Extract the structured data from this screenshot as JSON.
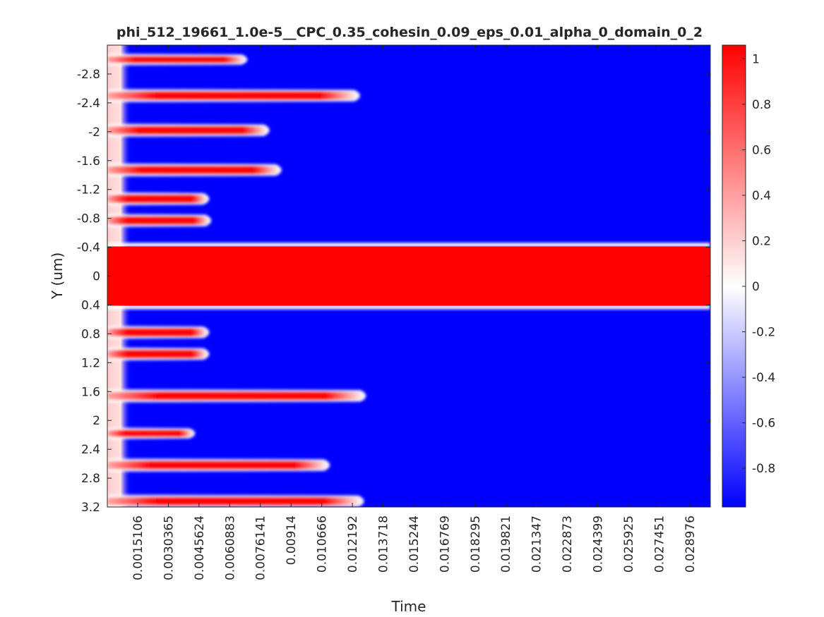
{
  "chart_data": {
    "type": "heatmap",
    "title": "phi_512_19661_1.0e-5__CPC_0.35_cohesin_0.09_eps_0.01_alpha_0_domain_0_2",
    "xlabel": "Time",
    "ylabel": "Y (um)",
    "x_range": [
      0,
      0.03
    ],
    "y_range": [
      -3.2,
      3.2
    ],
    "y_reversed": true,
    "x_ticks": [
      {
        "value": 0.0015106,
        "label": "0.0015106"
      },
      {
        "value": 0.0030365,
        "label": "0.0030365"
      },
      {
        "value": 0.0045624,
        "label": "0.0045624"
      },
      {
        "value": 0.0060883,
        "label": "0.0060883"
      },
      {
        "value": 0.0076141,
        "label": "0.0076141"
      },
      {
        "value": 0.00914,
        "label": "0.00914"
      },
      {
        "value": 0.010666,
        "label": "0.010666"
      },
      {
        "value": 0.012192,
        "label": "0.012192"
      },
      {
        "value": 0.013718,
        "label": "0.013718"
      },
      {
        "value": 0.015244,
        "label": "0.015244"
      },
      {
        "value": 0.016769,
        "label": "0.016769"
      },
      {
        "value": 0.018295,
        "label": "0.018295"
      },
      {
        "value": 0.019821,
        "label": "0.019821"
      },
      {
        "value": 0.021347,
        "label": "0.021347"
      },
      {
        "value": 0.022873,
        "label": "0.022873"
      },
      {
        "value": 0.024399,
        "label": "0.024399"
      },
      {
        "value": 0.025925,
        "label": "0.025925"
      },
      {
        "value": 0.027451,
        "label": "0.027451"
      },
      {
        "value": 0.028976,
        "label": "0.028976"
      }
    ],
    "y_ticks": [
      {
        "value": -2.8,
        "label": "-2.8"
      },
      {
        "value": -2.4,
        "label": "-2.4"
      },
      {
        "value": -2.0,
        "label": "-2"
      },
      {
        "value": -1.6,
        "label": "-1.6"
      },
      {
        "value": -1.2,
        "label": "-1.2"
      },
      {
        "value": -0.8,
        "label": "-0.8"
      },
      {
        "value": -0.4,
        "label": "-0.4"
      },
      {
        "value": 0.0,
        "label": "0"
      },
      {
        "value": 0.4,
        "label": "0.4"
      },
      {
        "value": 0.8,
        "label": "0.8"
      },
      {
        "value": 1.2,
        "label": "1.2"
      },
      {
        "value": 1.6,
        "label": "1.6"
      },
      {
        "value": 2.0,
        "label": "2"
      },
      {
        "value": 2.4,
        "label": "2.4"
      },
      {
        "value": 2.8,
        "label": "2.8"
      },
      {
        "value": 3.2,
        "label": "3.2"
      }
    ],
    "colorbar": {
      "range": [
        -0.97,
        1.06
      ],
      "ticks": [
        {
          "value": 1,
          "label": "1"
        },
        {
          "value": 0.8,
          "label": "0.8"
        },
        {
          "value": 0.6,
          "label": "0.6"
        },
        {
          "value": 0.4,
          "label": "0.4"
        },
        {
          "value": 0.2,
          "label": "0.2"
        },
        {
          "value": 0,
          "label": "0"
        },
        {
          "value": -0.2,
          "label": "-0.2"
        },
        {
          "value": -0.4,
          "label": "-0.4"
        },
        {
          "value": -0.6,
          "label": "-0.6"
        },
        {
          "value": -0.8,
          "label": "-0.8"
        }
      ],
      "colors": {
        "low": "#0000ff",
        "mid": "#ffffff",
        "high": "#ff0000"
      }
    },
    "field": {
      "background_value": -0.93,
      "central_band": {
        "y_min": -0.43,
        "y_max": 0.43,
        "value": 1.0,
        "x_end": 0.03
      },
      "initial_mixed_value": 0.2,
      "initial_mixed_until": 0.0012,
      "stripes": [
        {
          "y": -3.0,
          "x_end": 0.0069,
          "half_width": 0.04
        },
        {
          "y": -2.5,
          "x_end": 0.0125,
          "half_width": 0.05
        },
        {
          "y": -2.02,
          "x_end": 0.008,
          "half_width": 0.05
        },
        {
          "y": -1.47,
          "x_end": 0.0086,
          "half_width": 0.05
        },
        {
          "y": -1.07,
          "x_end": 0.005,
          "half_width": 0.05
        },
        {
          "y": -0.77,
          "x_end": 0.0051,
          "half_width": 0.05
        },
        {
          "y": 0.78,
          "x_end": 0.005,
          "half_width": 0.05
        },
        {
          "y": 1.08,
          "x_end": 0.005,
          "half_width": 0.05
        },
        {
          "y": 1.66,
          "x_end": 0.0128,
          "half_width": 0.05
        },
        {
          "y": 2.18,
          "x_end": 0.0043,
          "half_width": 0.04
        },
        {
          "y": 2.62,
          "x_end": 0.011,
          "half_width": 0.05
        },
        {
          "y": 3.12,
          "x_end": 0.0127,
          "half_width": 0.05
        }
      ]
    }
  }
}
